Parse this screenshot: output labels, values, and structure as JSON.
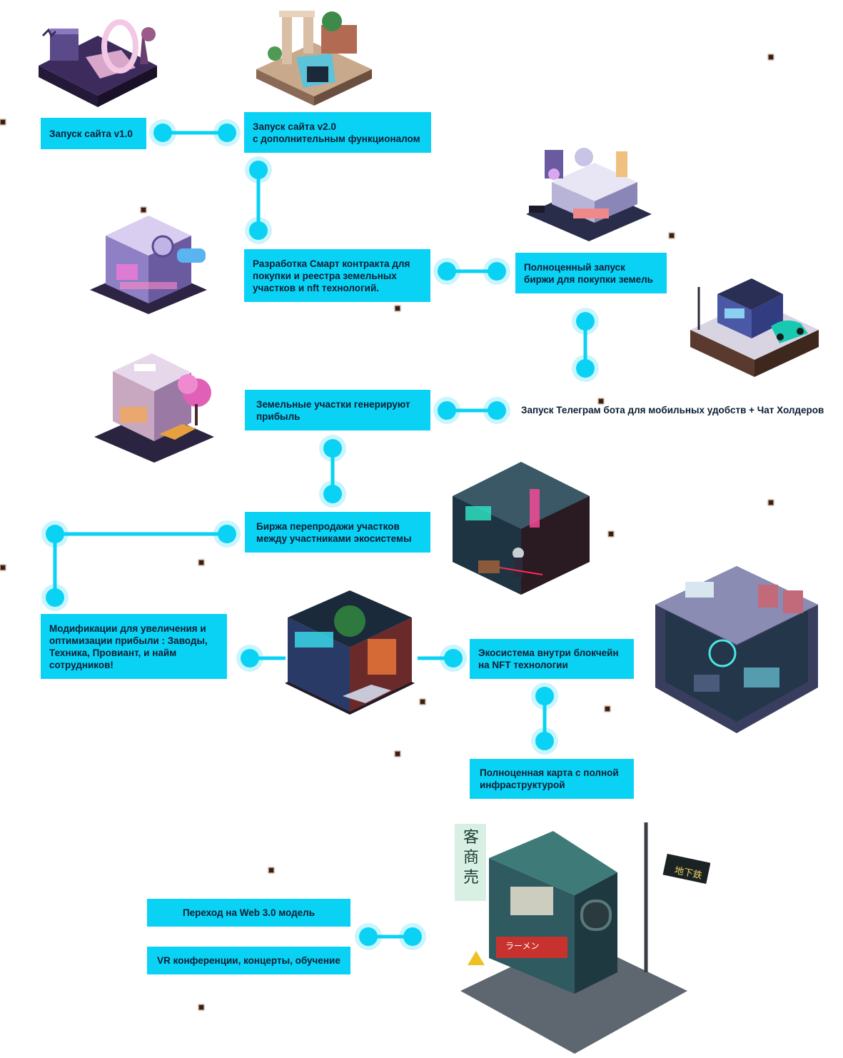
{
  "milestones": {
    "m1": "Запуск сайта  v1.0",
    "m2": "Запуск сайта v2.0\nс дополнительным функционалом",
    "m3": "Разработка Смарт контракта для\nпокупки и реестра земельных\nучастков и nft технологий.",
    "m4": "Полноценный запуск\nбиржи для покупки земель",
    "m5": "Запуск Телеграм бота для мобильных удобств + Чат Холдеров",
    "m6": "Земельные участки генерируют\nприбыль",
    "m7": "Биржа перепродажи участков\nмежду участниками экосистемы",
    "m8": "Модификации для увеличения и\nоптимизации прибыли : Заводы,\nТехника, Провиант, и найм\nсотрудников!",
    "m9": "Экосистема внутри блокчейн\nна NFT технологии",
    "m10": "Полноценная карта с полной\nинфраструктурой",
    "m11": "Переход на Web 3.0 модель",
    "m12": "VR конференции, концерты, обучение"
  },
  "illustrations": [
    "isometric-portal-scene",
    "isometric-ruins-waterfall-scene",
    "isometric-futuristic-house",
    "isometric-lab-scene",
    "isometric-house-with-car",
    "isometric-shop-with-tree",
    "isometric-neon-alley-room",
    "isometric-spaceship-room",
    "isometric-neon-garage-scene",
    "isometric-ramen-shop-corner"
  ],
  "signs": {
    "shop_sign": "客商売",
    "metro_sign": "地下鉄",
    "ramen_sign": "ラーメン"
  },
  "colors": {
    "accent": "#0ad2f5",
    "box_text": "#0b1e33",
    "background": "#ffffff"
  }
}
